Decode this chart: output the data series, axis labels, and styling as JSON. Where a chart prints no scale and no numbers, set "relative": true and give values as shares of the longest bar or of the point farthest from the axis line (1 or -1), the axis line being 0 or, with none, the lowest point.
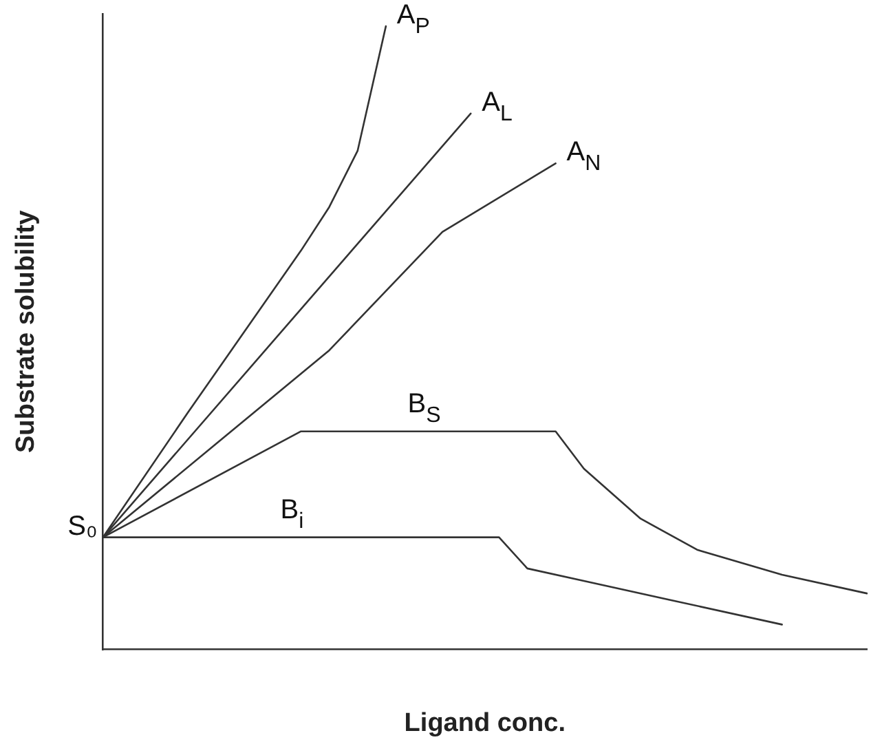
{
  "chart_data": {
    "type": "line",
    "relative": true,
    "xlabel": "Ligand conc.",
    "ylabel": "Substrate solubility",
    "categories": [
      null,
      null,
      null,
      null,
      null,
      null,
      null,
      null,
      null,
      null,
      null,
      null,
      null,
      null,
      null,
      null,
      null,
      null,
      null,
      null,
      null,
      null,
      null,
      null,
      null,
      null,
      null,
      null
    ],
    "series": [
      {
        "name": "A$_{P}$",
        "color": "#333333",
        "values": [
          0.18,
          null,
          null,
          0.38,
          null,
          0.51,
          null,
          0.64,
          0.71,
          0.8,
          1,
          null,
          null,
          null,
          null,
          null,
          null,
          null,
          null,
          null,
          null,
          null,
          null,
          null,
          null,
          null,
          null,
          null
        ]
      },
      {
        "name": "A$_{L}$",
        "color": "#333333",
        "values": [
          0.18,
          null,
          null,
          null,
          null,
          null,
          null,
          null,
          null,
          null,
          null,
          null,
          null,
          0.86,
          null,
          null,
          null,
          null,
          null,
          null,
          null,
          null,
          null,
          null,
          null,
          null,
          null,
          null
        ]
      },
      {
        "name": "A$_{N}$",
        "color": "#333333",
        "values": [
          0.18,
          null,
          null,
          null,
          0.33,
          null,
          null,
          null,
          0.48,
          null,
          null,
          null,
          0.67,
          null,
          null,
          null,
          0.78,
          null,
          null,
          null,
          null,
          null,
          null,
          null,
          null,
          null,
          null,
          null
        ]
      },
      {
        "name": "B$_{S}$",
        "color": "#333333",
        "values": [
          0.18,
          null,
          null,
          null,
          null,
          null,
          null,
          0.35,
          null,
          null,
          null,
          null,
          null,
          null,
          null,
          null,
          0.35,
          0.29,
          null,
          0.21,
          null,
          0.16,
          null,
          null,
          0.12,
          null,
          null,
          0.09
        ]
      },
      {
        "name": "B$_{i}$",
        "color": "#333333",
        "values": [
          0.18,
          null,
          null,
          null,
          null,
          null,
          null,
          null,
          null,
          null,
          null,
          null,
          null,
          null,
          0.18,
          0.13,
          null,
          0.11,
          null,
          null,
          0.08,
          null,
          null,
          null,
          0.04,
          null,
          null,
          null
        ]
      }
    ],
    "annotations": [
      "S₀"
    ],
    "grid": false,
    "legend": false,
    "marker": "none",
    "line_style": "solid"
  }
}
